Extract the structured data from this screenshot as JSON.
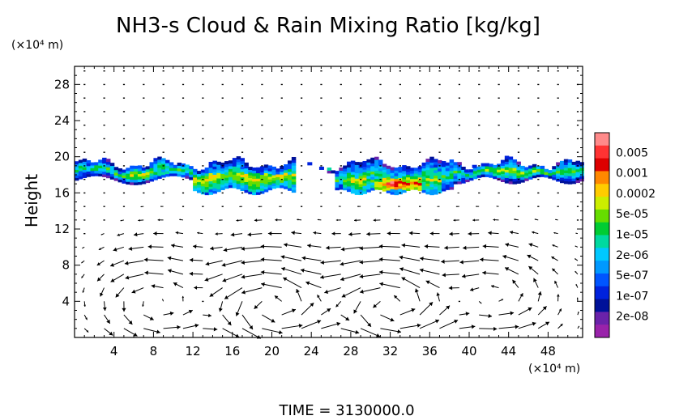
{
  "chart_data": {
    "type": "heatmap",
    "title": "NH3-s Cloud & Rain Mixing Ratio [kg/kg]",
    "xlabel": "",
    "ylabel": "Height",
    "x_unit": "(×10⁴ m)",
    "y_unit": "(×10⁴ m)",
    "xlim": [
      0,
      51.5
    ],
    "ylim": [
      0,
      30
    ],
    "xticks": [
      4,
      8,
      12,
      16,
      20,
      24,
      28,
      32,
      36,
      40,
      44,
      48
    ],
    "yticks": [
      4,
      8,
      12,
      16,
      20,
      24,
      28
    ],
    "grid": false,
    "footer": "TIME = 3130000.0",
    "colorbar": {
      "position": "right",
      "labels": [
        "0.005",
        "0.001",
        "0.0002",
        "5e-05",
        "1e-05",
        "2e-06",
        "5e-07",
        "1e-07",
        "2e-08"
      ],
      "colors": [
        "#ff8a8a",
        "#ff3333",
        "#dd0000",
        "#ff8800",
        "#ffcc00",
        "#ccee00",
        "#66dd00",
        "#00cc33",
        "#00d9a0",
        "#00c8ff",
        "#0099ff",
        "#0055ff",
        "#0022dd",
        "#001199",
        "#6a22aa",
        "#9922aa"
      ]
    },
    "cloud_layers": [
      {
        "x_range": [
          0,
          12
        ],
        "height_range": [
          17,
          19.3
        ],
        "max_value": "0.0002"
      },
      {
        "x_range": [
          12,
          22
        ],
        "height_range": [
          15.8,
          19
        ],
        "max_value": "0.0002"
      },
      {
        "x_range": [
          26,
          38
        ],
        "height_range": [
          16,
          18.2
        ],
        "max_value": "0.001"
      },
      {
        "x_range": [
          24,
          51.5
        ],
        "height_range": [
          17.2,
          19.8
        ],
        "max_value": "5e-05"
      }
    ],
    "vortices": [
      {
        "center_x": 20,
        "center_y": 3.5,
        "rotation": "counterclockwise"
      },
      {
        "center_x": 32,
        "center_y": 3.5,
        "rotation": "counterclockwise"
      },
      {
        "center_x": 43,
        "center_y": 4.5,
        "rotation": "counterclockwise"
      },
      {
        "center_x": 8,
        "center_y": 4,
        "rotation": "counterclockwise"
      }
    ]
  }
}
